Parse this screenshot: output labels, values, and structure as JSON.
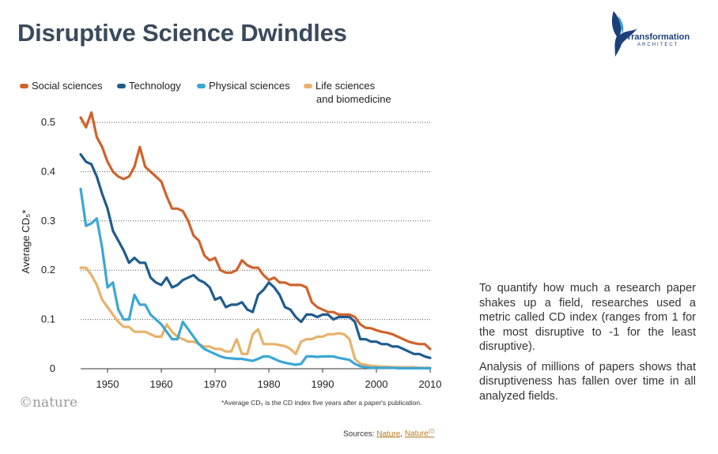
{
  "page": {
    "title": "Disruptive Science Dwindles",
    "logo_text": "Transformation",
    "logo_subtext": "ARCHITECT",
    "footnote": "*Average CD₅ is the CD index five years after a paper's publication.",
    "brand": "©nature",
    "sources_label": "Sources:",
    "source_1": "Nature",
    "source_2": "Nature",
    "source_2_sup": "(2)",
    "source_sep": ",",
    "description": [
      "To quantify how much a research paper shakes up a field, researches used a metric called CD index (ranges from 1 for the most disruptive to -1 for the least disruptive).",
      "Analysis of millions of papers shows that disruptiveness has fallen over time in all analyzed fields."
    ]
  },
  "chart_data": {
    "type": "line",
    "ylabel": "Average CD₅*",
    "xlim": [
      1945,
      2010
    ],
    "ylim": [
      0,
      0.5
    ],
    "xticks": [
      1950,
      1960,
      1970,
      1980,
      1990,
      2000,
      2010
    ],
    "yticks": [
      0,
      0.1,
      0.2,
      0.3,
      0.4,
      0.5
    ],
    "ytick_labels": [
      "0",
      "0.1",
      "0.2",
      "0.3",
      "0.4",
      "0.5"
    ],
    "grid": "horizontal-dotted",
    "legend_placement": "top-left",
    "x": [
      1945,
      1946,
      1947,
      1948,
      1949,
      1950,
      1951,
      1952,
      1953,
      1954,
      1955,
      1956,
      1957,
      1958,
      1959,
      1960,
      1961,
      1962,
      1963,
      1964,
      1965,
      1966,
      1967,
      1968,
      1969,
      1970,
      1971,
      1972,
      1973,
      1974,
      1975,
      1976,
      1977,
      1978,
      1979,
      1980,
      1981,
      1982,
      1983,
      1984,
      1985,
      1986,
      1987,
      1988,
      1989,
      1990,
      1991,
      1992,
      1993,
      1994,
      1995,
      1996,
      1997,
      1998,
      1999,
      2000,
      2001,
      2002,
      2003,
      2004,
      2005,
      2006,
      2007,
      2008,
      2009,
      2010
    ],
    "series": [
      {
        "name": "Social sciences",
        "color": "#d0622c",
        "values": [
          0.51,
          0.49,
          0.52,
          0.47,
          0.45,
          0.42,
          0.4,
          0.39,
          0.385,
          0.39,
          0.41,
          0.45,
          0.41,
          0.4,
          0.39,
          0.38,
          0.35,
          0.325,
          0.325,
          0.32,
          0.3,
          0.27,
          0.26,
          0.23,
          0.22,
          0.225,
          0.2,
          0.195,
          0.195,
          0.2,
          0.22,
          0.21,
          0.205,
          0.205,
          0.19,
          0.18,
          0.185,
          0.175,
          0.175,
          0.17,
          0.17,
          0.17,
          0.165,
          0.135,
          0.125,
          0.12,
          0.115,
          0.115,
          0.11,
          0.11,
          0.11,
          0.105,
          0.09,
          0.083,
          0.082,
          0.078,
          0.075,
          0.073,
          0.07,
          0.065,
          0.06,
          0.055,
          0.052,
          0.05,
          0.05,
          0.04
        ]
      },
      {
        "name": "Technology",
        "color": "#1f5c8e",
        "values": [
          0.435,
          0.42,
          0.415,
          0.39,
          0.355,
          0.325,
          0.28,
          0.26,
          0.24,
          0.215,
          0.225,
          0.215,
          0.215,
          0.185,
          0.175,
          0.17,
          0.185,
          0.165,
          0.17,
          0.18,
          0.185,
          0.19,
          0.18,
          0.175,
          0.165,
          0.14,
          0.145,
          0.125,
          0.13,
          0.13,
          0.135,
          0.12,
          0.115,
          0.15,
          0.16,
          0.175,
          0.165,
          0.15,
          0.125,
          0.12,
          0.105,
          0.095,
          0.11,
          0.11,
          0.105,
          0.11,
          0.11,
          0.1,
          0.105,
          0.105,
          0.105,
          0.095,
          0.06,
          0.06,
          0.055,
          0.055,
          0.05,
          0.05,
          0.045,
          0.045,
          0.04,
          0.035,
          0.03,
          0.03,
          0.025,
          0.022
        ]
      },
      {
        "name": "Physical sciences",
        "color": "#3ba7d4",
        "values": [
          0.365,
          0.29,
          0.295,
          0.305,
          0.245,
          0.165,
          0.175,
          0.12,
          0.1,
          0.1,
          0.15,
          0.13,
          0.13,
          0.11,
          0.1,
          0.09,
          0.075,
          0.06,
          0.06,
          0.095,
          0.08,
          0.065,
          0.05,
          0.04,
          0.035,
          0.03,
          0.025,
          0.022,
          0.021,
          0.02,
          0.02,
          0.018,
          0.016,
          0.02,
          0.025,
          0.025,
          0.02,
          0.015,
          0.012,
          0.01,
          0.008,
          0.01,
          0.025,
          0.025,
          0.024,
          0.025,
          0.025,
          0.025,
          0.022,
          0.02,
          0.018,
          0.01,
          0.005,
          0.003,
          0.002,
          0.002,
          0.002,
          0.002,
          0.002,
          0.001,
          0.001,
          0.001,
          0.001,
          0.001,
          0.001,
          0.001
        ]
      },
      {
        "name": "Life sciences and biomedicine",
        "name_line1": "Life sciences",
        "name_line2": "and biomedicine",
        "color": "#e8b26a",
        "values": [
          0.205,
          0.205,
          0.19,
          0.17,
          0.14,
          0.125,
          0.11,
          0.095,
          0.085,
          0.085,
          0.075,
          0.075,
          0.075,
          0.07,
          0.065,
          0.065,
          0.09,
          0.075,
          0.065,
          0.06,
          0.055,
          0.055,
          0.05,
          0.045,
          0.045,
          0.04,
          0.04,
          0.035,
          0.035,
          0.06,
          0.03,
          0.03,
          0.07,
          0.08,
          0.05,
          0.05,
          0.05,
          0.048,
          0.046,
          0.04,
          0.03,
          0.055,
          0.06,
          0.06,
          0.065,
          0.065,
          0.07,
          0.07,
          0.072,
          0.07,
          0.06,
          0.02,
          0.01,
          0.008,
          0.006,
          0.005,
          0.004,
          0.004,
          0.003,
          0.003,
          0.003,
          0.003,
          0.003,
          0.002,
          0.002,
          0.002
        ]
      }
    ]
  }
}
